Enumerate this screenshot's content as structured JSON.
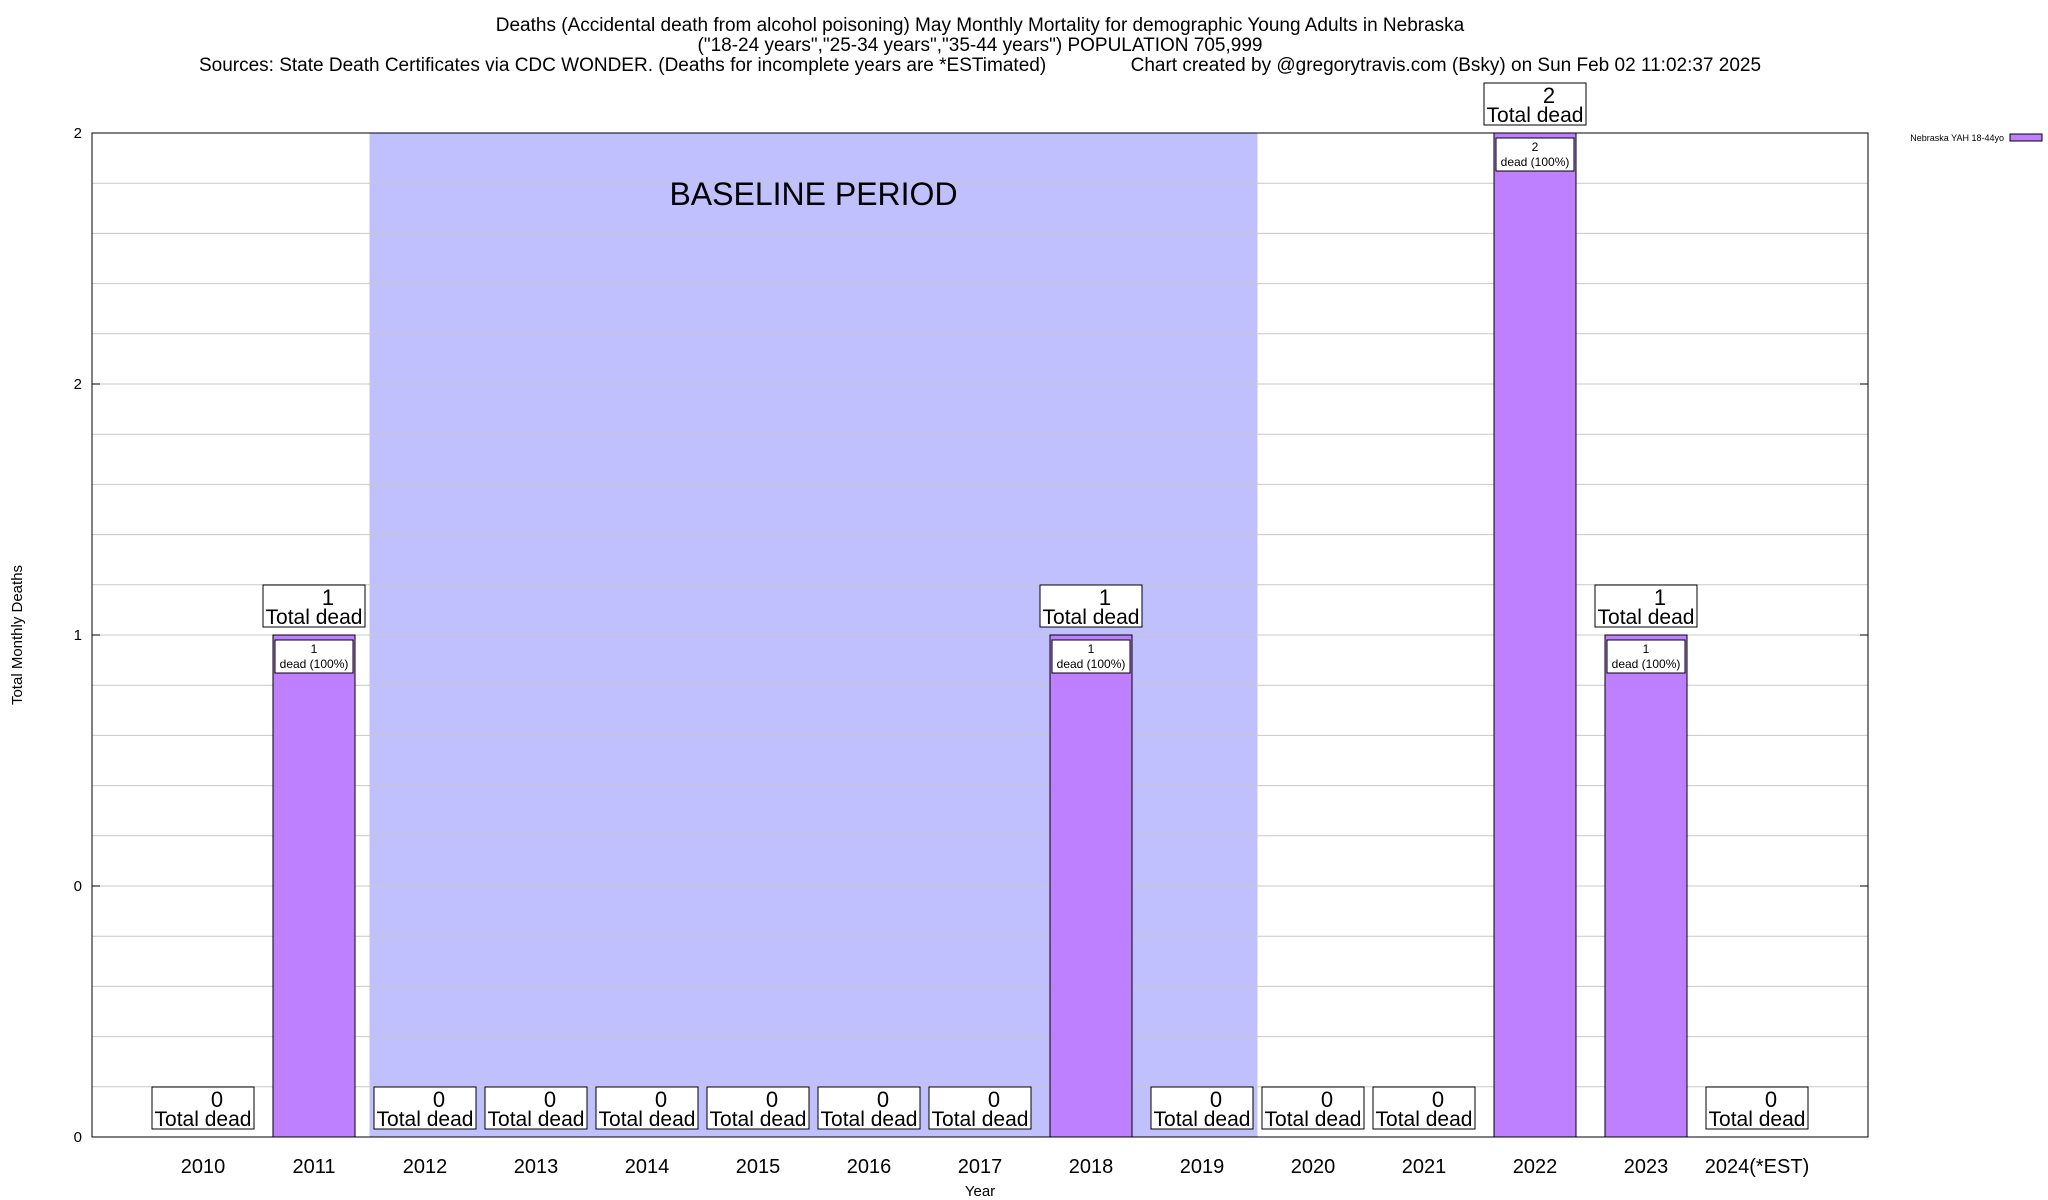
{
  "chart_data": {
    "type": "bar",
    "title_lines": [
      "Deaths (Accidental death from alcohol poisoning) May Monthly Mortality for demographic Young Adults in Nebraska",
      "(\"18-24 years\",\"25-34 years\",\"35-44 years\") POPULATION 705,999",
      "Sources: State Death Certificates via CDC WONDER. (Deaths for incomplete years are *ESTimated)                Chart created by @gregorytravis.com (Bsky) on Sun Feb 02 11:02:37 2025"
    ],
    "xlabel": "Year",
    "ylabel": "Total Monthly Deaths",
    "categories": [
      "2010",
      "2011",
      "2012",
      "2013",
      "2014",
      "2015",
      "2016",
      "2017",
      "2018",
      "2019",
      "2020",
      "2021",
      "2022",
      "2023",
      "2024(*EST)"
    ],
    "series": [
      {
        "name": "Nebraska YAH 18-44yo",
        "color": "#bf80ff",
        "values": [
          0,
          1,
          0,
          0,
          0,
          0,
          0,
          0,
          1,
          0,
          0,
          0,
          2,
          1,
          0
        ]
      }
    ],
    "bar_label_suffix": "Total dead",
    "inner_label_suffix": "dead (100%)",
    "ylim": [
      0,
      2
    ],
    "y_tick_labels": [
      "0",
      "0",
      "1",
      "2",
      "2"
    ],
    "grid": true,
    "baseline_period": {
      "label": "BASELINE PERIOD",
      "from_category": "2012",
      "to_category": "2019",
      "color": "#c0c0ff"
    },
    "legend_position": "top-right"
  }
}
